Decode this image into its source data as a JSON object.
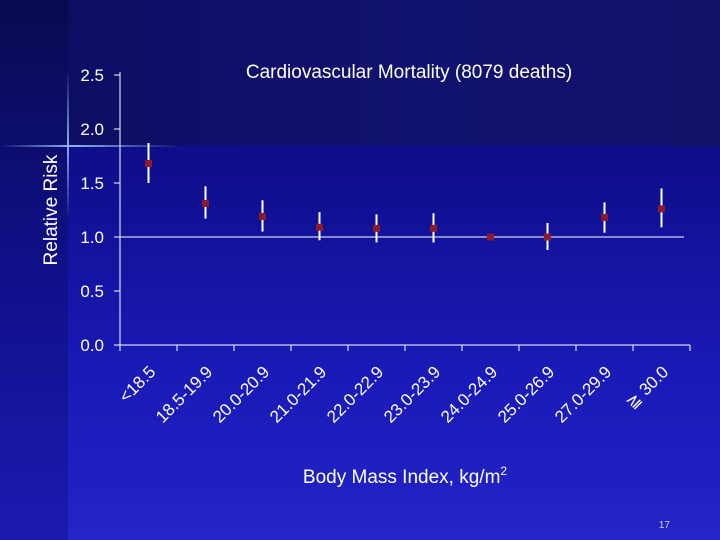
{
  "slide_number": "17",
  "chart_data": {
    "type": "scatter",
    "title": "Cardiovascular Mortality (8079 deaths)",
    "xlabel": "Body Mass Index, kg/m",
    "xlabel_sup": "2",
    "ylabel": "Relative Risk",
    "categories": [
      "<18.5",
      "18.5-19.9",
      "20.0-20.9",
      "21.0-21.9",
      "22.0-22.9",
      "23.0-23.9",
      "24.0-24.9",
      "25.0-26.9",
      "27.0-29.9",
      "≧ 30.0"
    ],
    "values": [
      1.68,
      1.31,
      1.19,
      1.09,
      1.08,
      1.08,
      1.0,
      1.0,
      1.18,
      1.26
    ],
    "ci_low": [
      1.5,
      1.17,
      1.05,
      0.97,
      0.95,
      0.95,
      1.0,
      0.88,
      1.04,
      1.09
    ],
    "ci_high": [
      1.87,
      1.47,
      1.34,
      1.23,
      1.21,
      1.22,
      1.0,
      1.13,
      1.32,
      1.45
    ],
    "reference_line": 1.0,
    "ylim": [
      0,
      2.5
    ],
    "yticks": [
      "0.0",
      "0.5",
      "1.0",
      "1.5",
      "2.0",
      "2.5"
    ],
    "grid": false,
    "colors": {
      "marker": "#8b1a2a",
      "error_bar": "#ffffff",
      "axis": "#ffffff",
      "text": "#ffffff"
    }
  }
}
